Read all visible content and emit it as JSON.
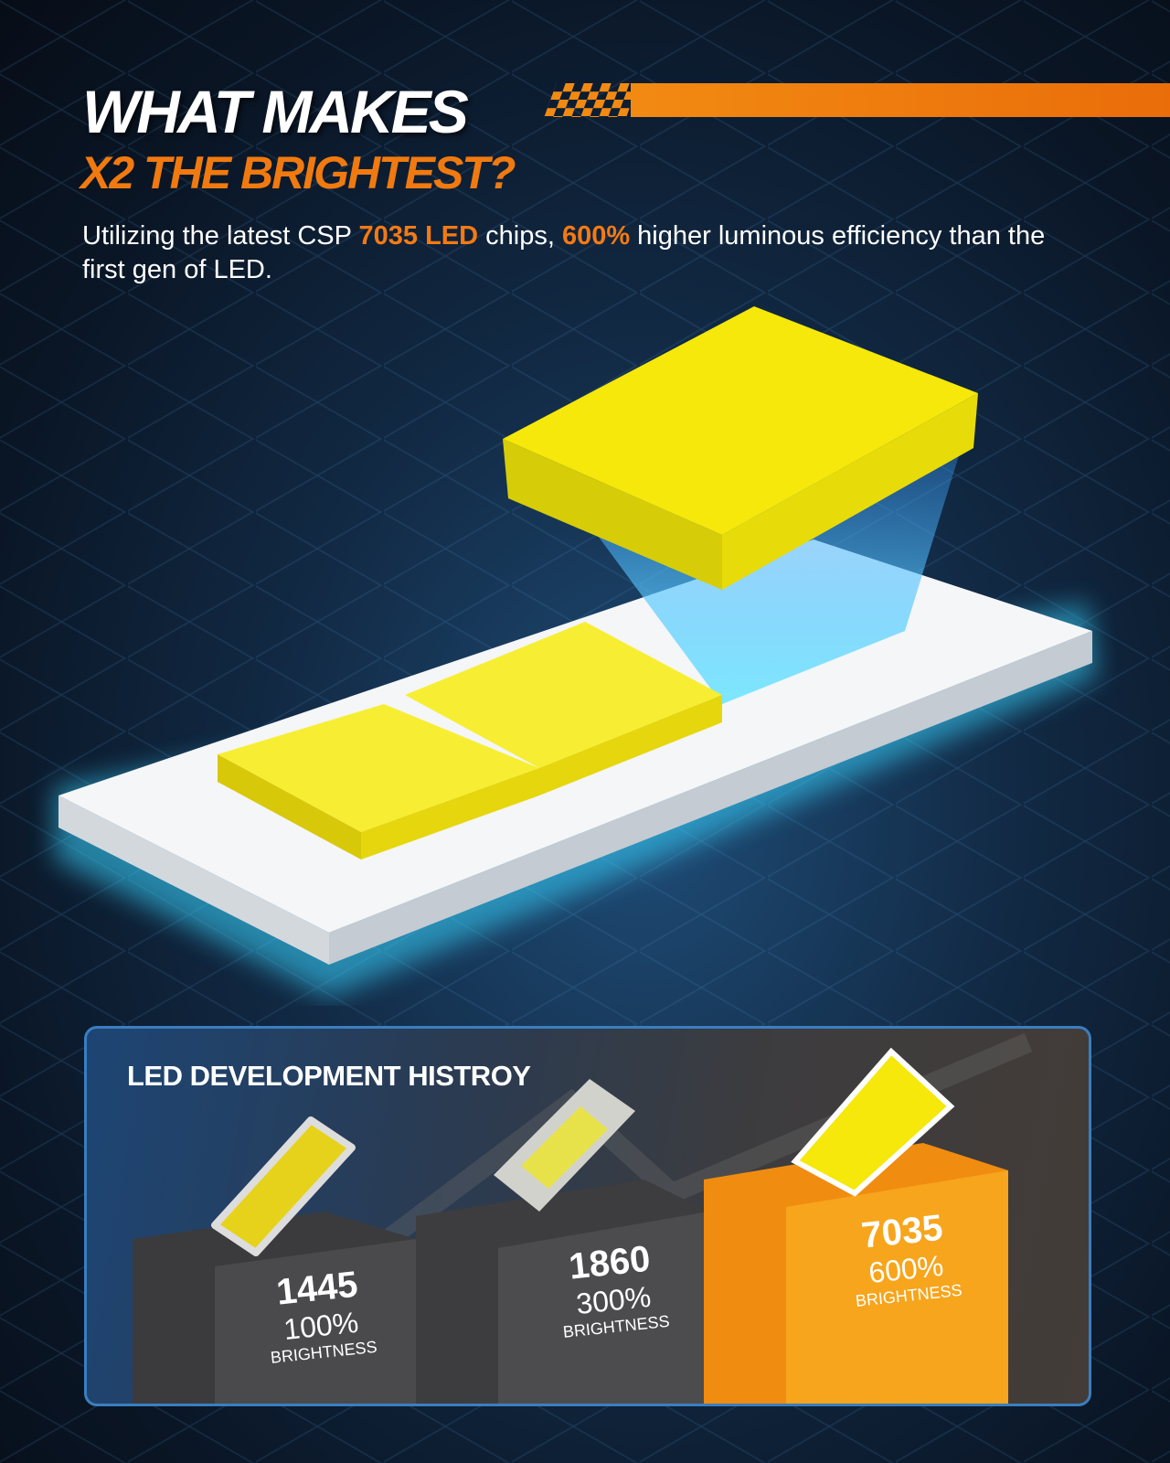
{
  "headline": {
    "line1": "WHAT MAKES",
    "line2": "X2 THE BRIGHTEST?"
  },
  "description": {
    "part1": "Utilizing the latest CSP ",
    "highlight1": "7035 LED",
    "part2": " chips, ",
    "highlight2": "600%",
    "part3": " higher luminous efficiency than the first gen of LED."
  },
  "colors": {
    "accent": "#f07a10",
    "chip_yellow": "#f5e80a",
    "glow": "#39d4ff"
  },
  "history": {
    "title": "LED DEVELOPMENT HISTROY",
    "items": [
      {
        "model": "1445",
        "brightness": "100%",
        "label": "BRIGHTNESS"
      },
      {
        "model": "1860",
        "brightness": "300%",
        "label": "BRIGHTNESS"
      },
      {
        "model": "7035",
        "brightness": "600%",
        "label": "BRIGHTNESS"
      }
    ]
  }
}
